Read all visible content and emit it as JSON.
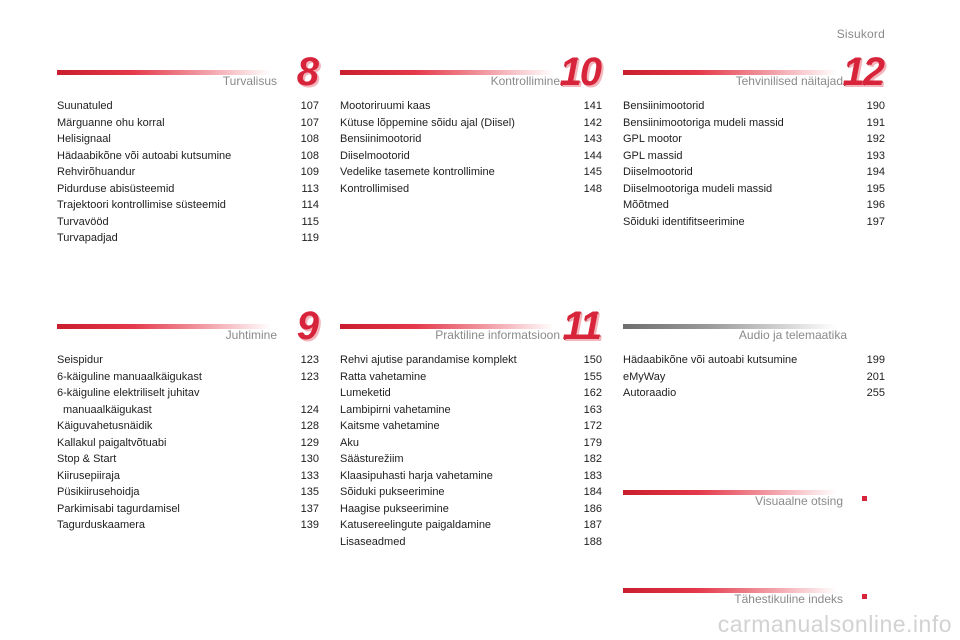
{
  "header": {
    "title": "Sisukord"
  },
  "sections": {
    "turvalisus": {
      "title": "Turvalisus",
      "number": "8",
      "entries": [
        {
          "label": "Suunatuled",
          "page": "107"
        },
        {
          "label": "Märguanne ohu korral",
          "page": "107"
        },
        {
          "label": "Helisignaal",
          "page": "108"
        },
        {
          "label": "Hädaabikõne või autoabi kutsumine",
          "page": "108"
        },
        {
          "label": "Rehvirõhuandur",
          "page": "109"
        },
        {
          "label": "Pidurduse abisüsteemid",
          "page": "113"
        },
        {
          "label": "Trajektoori kontrollimise süsteemid",
          "page": "114"
        },
        {
          "label": "Turvavööd",
          "page": "115"
        },
        {
          "label": "Turvapadjad",
          "page": "119"
        }
      ]
    },
    "juhtimine": {
      "title": "Juhtimine",
      "number": "9",
      "entries": [
        {
          "label": "Seispidur",
          "page": "123"
        },
        {
          "label": "6-käiguline manuaalkäigukast",
          "page": "123"
        },
        {
          "label": "6-käiguline elektriliselt juhitav",
          "label2": "manuaalkäigukast",
          "page": "124"
        },
        {
          "label": "Käiguvahetusnäidik",
          "page": "128"
        },
        {
          "label": "Kallakul paigaltvõtuabi",
          "page": "129"
        },
        {
          "label": "Stop & Start",
          "page": "130"
        },
        {
          "label": "Kiirusepiiraja",
          "page": "133"
        },
        {
          "label": "Püsikiirusehoidja",
          "page": "135"
        },
        {
          "label": "Parkimisabi tagurdamisel",
          "page": "137"
        },
        {
          "label": "Tagurduskaamera",
          "page": "139"
        }
      ]
    },
    "kontrollimine": {
      "title": "Kontrollimine",
      "number": "10",
      "entries": [
        {
          "label": "Mootoriruumi kaas",
          "page": "141"
        },
        {
          "label": "Kütuse lõppemine sõidu ajal (Diisel)",
          "page": "142"
        },
        {
          "label": "Bensiinimootorid",
          "page": "143"
        },
        {
          "label": "Diiselmootorid",
          "page": "144"
        },
        {
          "label": "Vedelike tasemete kontrollimine",
          "page": "145"
        },
        {
          "label": "Kontrollimised",
          "page": "148"
        }
      ]
    },
    "praktiline": {
      "title": "Praktiline informatsioon",
      "number": "11",
      "entries": [
        {
          "label": "Rehvi ajutise parandamise komplekt",
          "page": "150"
        },
        {
          "label": "Ratta vahetamine",
          "page": "155"
        },
        {
          "label": "Lumeketid",
          "page": "162"
        },
        {
          "label": "Lambipirni vahetamine",
          "page": "163"
        },
        {
          "label": "Kaitsme vahetamine",
          "page": "172"
        },
        {
          "label": "Aku",
          "page": "179"
        },
        {
          "label": "Säästurežiim",
          "page": "182"
        },
        {
          "label": "Klaasipuhasti harja vahetamine",
          "page": "183"
        },
        {
          "label": "Sõiduki pukseerimine",
          "page": "184"
        },
        {
          "label": "Haagise pukseerimine",
          "page": "186"
        },
        {
          "label": "Katusereelingute paigaldamine",
          "page": "187"
        },
        {
          "label": "Lisaseadmed",
          "page": "188"
        }
      ]
    },
    "tehvinilised": {
      "title": "Tehvinilised näitajad",
      "number": "12",
      "entries": [
        {
          "label": "Bensiinimootorid",
          "page": "190"
        },
        {
          "label": "Bensiinimootoriga mudeli massid",
          "page": "191"
        },
        {
          "label": "GPL mootor",
          "page": "192"
        },
        {
          "label": "GPL massid",
          "page": "193"
        },
        {
          "label": "Diiselmootorid",
          "page": "194"
        },
        {
          "label": "Diiselmootoriga mudeli massid",
          "page": "195"
        },
        {
          "label": "Mõõtmed",
          "page": "196"
        },
        {
          "label": "Sõiduki identifitseerimine",
          "page": "197"
        }
      ]
    },
    "audio": {
      "title": "Audio ja telemaatika",
      "entries": [
        {
          "label": "Hädaabikõne või autoabi kutsumine",
          "page": "199"
        },
        {
          "label": "eMyWay",
          "page": "201"
        },
        {
          "label": "Autoraadio",
          "page": "255"
        }
      ]
    },
    "visuaalne": {
      "title": "Visuaalne otsing"
    },
    "tahestikuline": {
      "title": "Tähestikuline indeks"
    }
  },
  "watermark": "carmanualsonline.info",
  "colors": {
    "accent": "#d8243a",
    "muted": "#8a8a8a",
    "text": "#1e1e1e"
  }
}
